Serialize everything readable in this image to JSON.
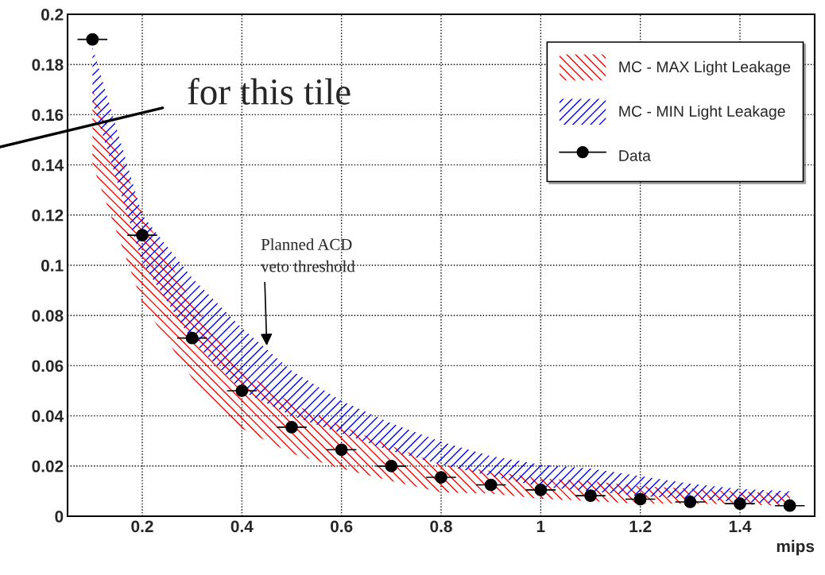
{
  "chart_data": {
    "type": "scatter",
    "xlabel": "mips",
    "x": [
      0.1,
      0.2,
      0.3,
      0.4,
      0.5,
      0.6,
      0.7,
      0.8,
      0.9,
      1.0,
      1.1,
      1.2,
      1.3,
      1.4,
      1.5
    ],
    "series": [
      {
        "name": "MC - MAX Light Leakage",
        "type": "line",
        "color": "#ff0000",
        "values": [
          null,
          null,
          null,
          null,
          null,
          null,
          null,
          null,
          null,
          null,
          null,
          null,
          null,
          null,
          null
        ],
        "lower": [
          0.14,
          0.085,
          0.055,
          0.035,
          0.025,
          0.019,
          0.014,
          0.0095,
          0.009,
          0.007,
          0.006,
          0.005,
          0.005,
          0.0048,
          0.004
        ],
        "upper": [
          0.17,
          0.121,
          0.085,
          0.058,
          0.045,
          0.036,
          0.028,
          0.0206,
          0.018,
          0.015,
          0.014,
          0.012,
          0.011,
          0.0098,
          0.009
        ]
      },
      {
        "name": "MC - MIN Light Leakage",
        "type": "line",
        "color": "#0000ff",
        "values": [
          null,
          null,
          null,
          null,
          null,
          null,
          null,
          null,
          null,
          null,
          null,
          null,
          null,
          null,
          null
        ],
        "lower": [
          0.165,
          0.101,
          0.07,
          0.05,
          0.04,
          0.033,
          0.026,
          0.0206,
          0.016,
          0.0117,
          0.01,
          0.008,
          0.007,
          0.0057,
          0.005
        ],
        "upper": [
          0.187,
          0.12,
          0.095,
          0.075,
          0.058,
          0.046,
          0.037,
          0.0297,
          0.024,
          0.0206,
          0.019,
          0.016,
          0.013,
          0.0108,
          0.01
        ]
      },
      {
        "name": "Data",
        "color": "#000000",
        "marker": "circle",
        "values": [
          0.19,
          0.112,
          0.071,
          0.05,
          0.0355,
          0.0265,
          0.02,
          0.0155,
          0.0125,
          0.0105,
          0.0082,
          0.0068,
          0.0057,
          0.005,
          0.0042
        ],
        "xerrors": [
          0.03,
          0.03,
          0.03,
          0.03,
          0.03,
          0.03,
          0.03,
          0.03,
          0.03,
          0.03,
          0.03,
          0.03,
          0.03,
          0.03,
          0.03
        ]
      }
    ],
    "xlim": [
      0.05,
      1.55
    ],
    "xticks": [
      0.2,
      0.4,
      0.6,
      0.8,
      1,
      1.2,
      1.4
    ],
    "ylim": [
      0,
      0.2
    ],
    "yticks": [
      0,
      0.02,
      0.04,
      0.06,
      0.08,
      0.1,
      0.12,
      0.14,
      0.16,
      0.18,
      0.2
    ],
    "annotations": [
      {
        "text": "Planned ACD\nveto threshold",
        "x": 0.45,
        "y": 0.068
      },
      "for this tile"
    ],
    "grid": true,
    "legend": "top right"
  }
}
